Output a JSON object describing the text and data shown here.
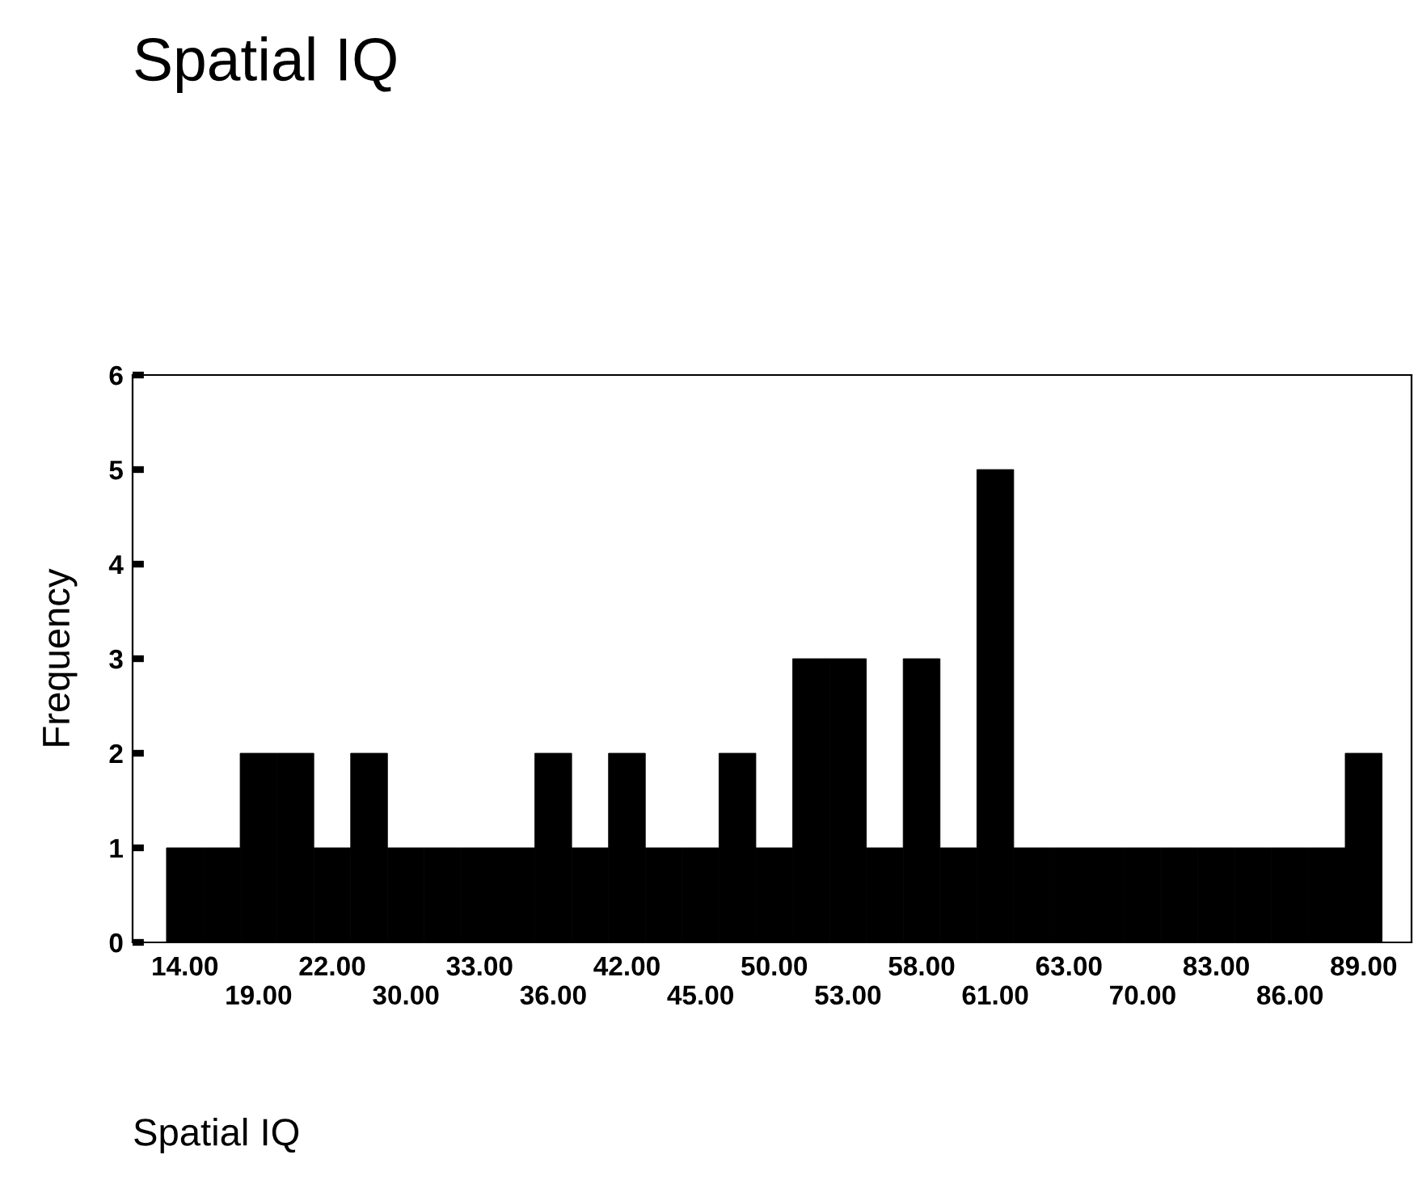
{
  "chart_data": {
    "type": "bar",
    "title": "Spatial IQ",
    "xlabel": "Spatial IQ",
    "ylabel": "Frequency",
    "categories": [
      "14.00",
      null,
      "19.00",
      null,
      "22.00",
      null,
      "30.00",
      null,
      "33.00",
      null,
      "36.00",
      null,
      "42.00",
      null,
      "45.00",
      null,
      "50.00",
      null,
      "53.00",
      null,
      "58.00",
      null,
      "61.00",
      null,
      "63.00",
      null,
      "70.00",
      null,
      "83.00",
      null,
      "86.00",
      null,
      "89.00"
    ],
    "values": [
      1,
      1,
      2,
      2,
      1,
      2,
      1,
      1,
      1,
      1,
      2,
      1,
      2,
      1,
      1,
      2,
      1,
      3,
      3,
      1,
      3,
      1,
      5,
      1,
      1,
      1,
      1,
      1,
      1,
      1,
      1,
      1,
      2
    ],
    "color": "#000000",
    "ylim": [
      0,
      6
    ],
    "yticks": [
      0,
      1,
      2,
      3,
      4,
      5,
      6
    ],
    "grid": false,
    "legend": false
  }
}
